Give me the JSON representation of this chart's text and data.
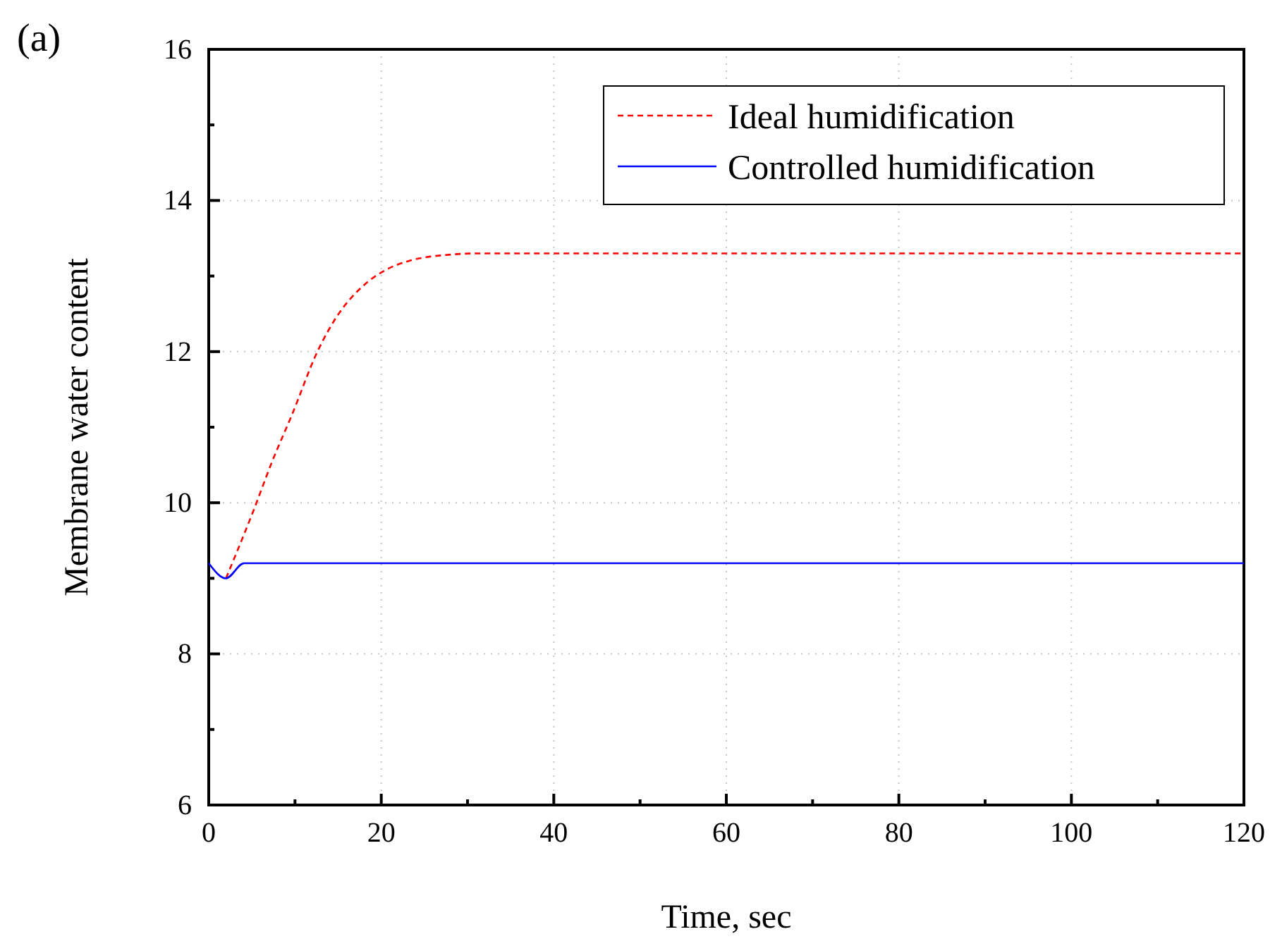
{
  "chart_data": {
    "type": "line",
    "xlabel": "Time, sec",
    "ylabel": "Membrane water content",
    "annotations": [
      "(a)"
    ],
    "xlim": [
      0,
      120
    ],
    "ylim": [
      6,
      16
    ],
    "xticks": [
      0,
      20,
      40,
      60,
      80,
      100,
      120
    ],
    "yticks": [
      6,
      8,
      10,
      12,
      14,
      16
    ],
    "grid": true,
    "legend": "top right",
    "series": [
      {
        "name": "Ideal humidification",
        "color": "#ff0000",
        "line_style": "dashed",
        "x": [
          2,
          5.2,
          7.4,
          9.6,
          12.6,
          15,
          17.8,
          20.5,
          23.2,
          27.6,
          31.4,
          60,
          120
        ],
        "values": [
          9.0,
          9.9,
          10.56,
          11.15,
          12.0,
          12.49,
          12.86,
          13.08,
          13.2,
          13.28,
          13.3,
          13.3,
          13.3
        ]
      },
      {
        "name": "Controlled humidification",
        "color": "#0000ff",
        "line_style": "solid",
        "x": [
          0,
          2,
          4.1,
          60,
          120
        ],
        "values": [
          9.2,
          9.0,
          9.2,
          9.2,
          9.2
        ]
      }
    ]
  }
}
